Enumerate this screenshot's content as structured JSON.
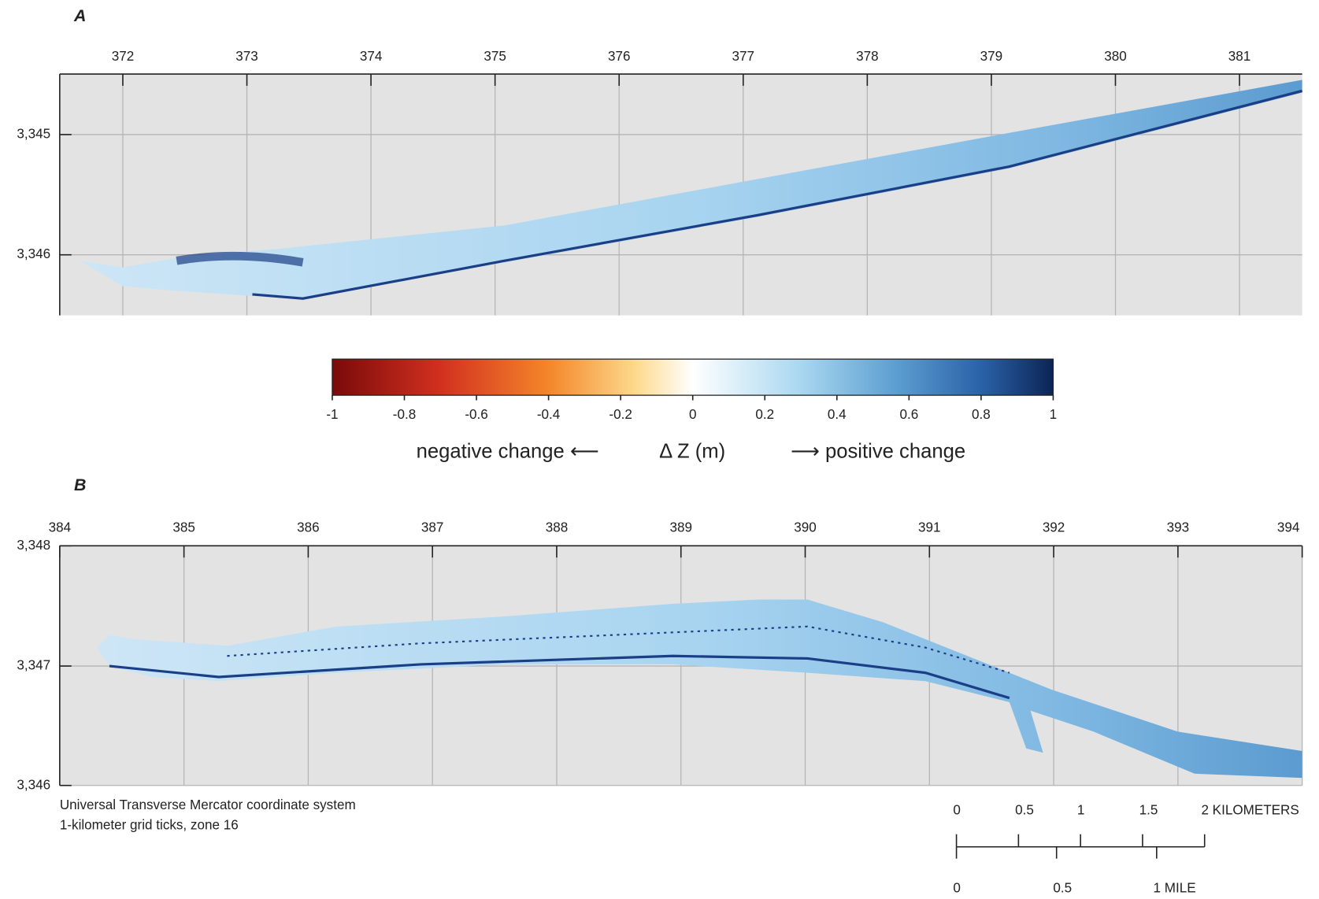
{
  "panel_a": {
    "label": "A",
    "x_ticks": [
      "372",
      "373",
      "374",
      "375",
      "376",
      "377",
      "378",
      "379",
      "380",
      "381"
    ],
    "y_ticks": [
      "3,345",
      "3,346"
    ]
  },
  "colorbar": {
    "ticks": [
      "-1",
      "-0.8",
      "-0.6",
      "-0.4",
      "-0.2",
      "0",
      "0.2",
      "0.4",
      "0.6",
      "0.8",
      "1"
    ],
    "negative_label": "negative change ⟵",
    "axis_label": "Δ Z (m)",
    "positive_label": "⟶ positive change"
  },
  "panel_b": {
    "label": "B",
    "x_ticks": [
      "384",
      "385",
      "386",
      "387",
      "388",
      "389",
      "390",
      "391",
      "392",
      "393",
      "394"
    ],
    "y_ticks": [
      "3,348",
      "3,347",
      "3,346"
    ]
  },
  "notes": [
    "Universal Transverse Mercator coordinate system",
    "1-kilometer grid ticks, zone 16"
  ],
  "scale_bar": {
    "kilometer_labels": [
      "0",
      "0.5",
      "1",
      "1.5",
      "2 KILOMETERS"
    ],
    "mile_labels": [
      "0",
      "0.5",
      "1 MILE"
    ]
  }
}
